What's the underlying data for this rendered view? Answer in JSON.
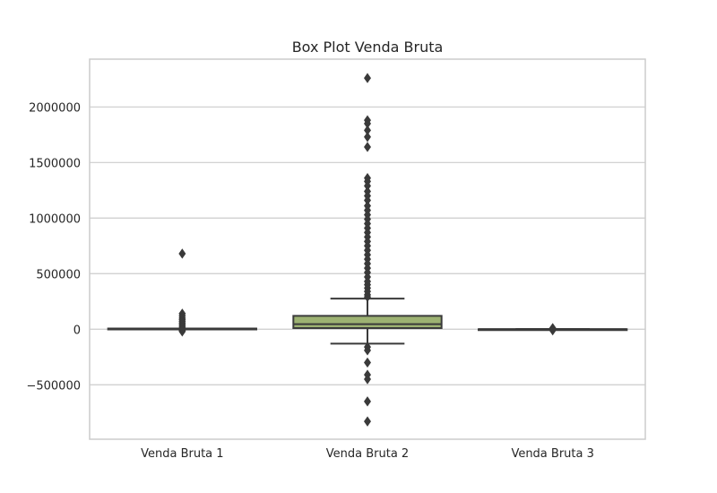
{
  "chart_data": {
    "type": "box",
    "title": "Box Plot Venda Bruta",
    "xlabel": "",
    "ylabel": "",
    "ylim": [
      -990000,
      2430000
    ],
    "yticks": [
      -500000,
      0,
      500000,
      1000000,
      1500000,
      2000000
    ],
    "ytick_labels": [
      "−500000",
      "0",
      "500000",
      "1000000",
      "1500000",
      "2000000"
    ],
    "grid": true,
    "categories": [
      "Venda Bruta 1",
      "Venda Bruta 2",
      "Venda Bruta 3"
    ],
    "boxes": [
      {
        "name": "Venda Bruta 1",
        "color": "#2b2b2b",
        "whisker_low": 4000,
        "q1": 4000,
        "median": 5000,
        "q3": 6000,
        "whisker_high": 6000,
        "outliers": [
          680000,
          140000,
          120000,
          100000,
          85000,
          70000,
          55000,
          40000,
          25000,
          12000,
          -5000,
          -12000,
          -20000
        ]
      },
      {
        "name": "Venda Bruta 2",
        "color": "#9db272",
        "whisker_low": -130000,
        "q1": 10000,
        "median": 45000,
        "q3": 120000,
        "whisker_high": 275000,
        "outliers": [
          2260000,
          1880000,
          1850000,
          1790000,
          1730000,
          1640000,
          1360000,
          1330000,
          1290000,
          1240000,
          1200000,
          1160000,
          1110000,
          1070000,
          1030000,
          990000,
          950000,
          910000,
          870000,
          830000,
          790000,
          750000,
          710000,
          670000,
          630000,
          590000,
          550000,
          510000,
          470000,
          430000,
          400000,
          370000,
          340000,
          310000,
          290000,
          -160000,
          -190000,
          -300000,
          -410000,
          -450000,
          -650000,
          -830000
        ]
      },
      {
        "name": "Venda Bruta 3",
        "color": "#2b2b2b",
        "whisker_low": 0,
        "q1": 0,
        "median": 0,
        "q3": 0,
        "whisker_high": 0,
        "outliers": [
          10000,
          5000,
          -5000,
          -10000
        ]
      }
    ]
  }
}
